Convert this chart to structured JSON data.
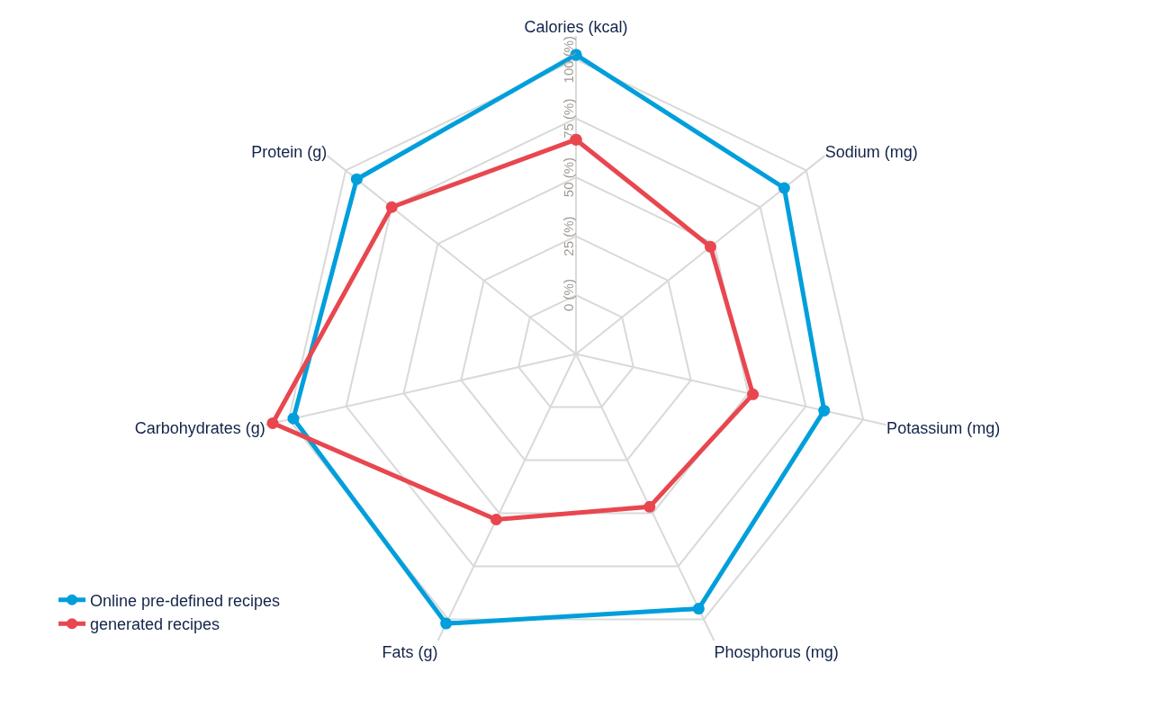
{
  "chart_data": {
    "type": "radar",
    "categories": [
      "Calories (kcal)",
      "Sodium (mg)",
      "Potassium (mg)",
      "Phosphorus (mg)",
      "Fats (g)",
      "Carbohydrates (g)",
      "Protein (g)"
    ],
    "series": [
      {
        "name": "Online pre-defined recipes",
        "color": "#009fdb",
        "values": [
          102,
          88,
          83,
          95,
          102,
          98,
          94
        ]
      },
      {
        "name": "generated recipes",
        "color": "#e8474f",
        "values": [
          66,
          48,
          52,
          47,
          53,
          107,
          75
        ]
      }
    ],
    "ylim": [
      -25,
      110
    ],
    "yticks": [
      {
        "value": 0,
        "label": "0 (%)"
      },
      {
        "value": 25,
        "label": "25 (%)"
      },
      {
        "value": 50,
        "label": "50 (%)"
      },
      {
        "value": 75,
        "label": "75 (%)"
      },
      {
        "value": 100,
        "label": "100 (%)"
      }
    ],
    "grid": true,
    "legend": "bottom left",
    "marker": "circle",
    "line_style": "solid"
  }
}
